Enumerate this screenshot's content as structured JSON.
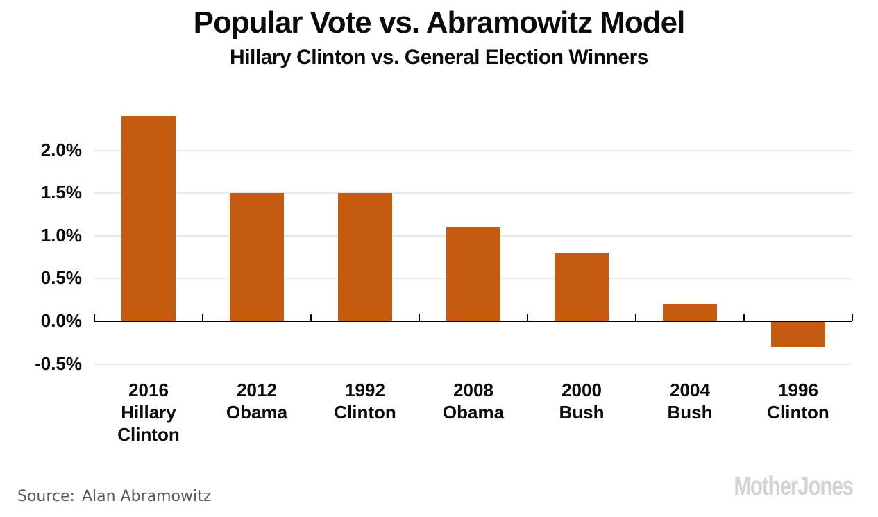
{
  "header": {
    "title": "Popular Vote vs. Abramowitz Model",
    "subtitle": "Hillary Clinton vs. General Election Winners"
  },
  "footer": {
    "source_label": "Source:",
    "source_value": "Alan Abramowitz",
    "logo_text": "MotherJones"
  },
  "colors": {
    "bar": "#c55a11",
    "axis": "#000000",
    "gridline": "#e9e9e9",
    "text": "#0b0b0b",
    "source_text": "#5b5b5b",
    "logo": "#d3d3d3"
  },
  "chart_data": {
    "type": "bar",
    "title": "Popular Vote vs. Abramowitz Model",
    "subtitle": "Hillary Clinton vs. General Election Winners",
    "categories": [
      [
        "2016",
        "Hillary",
        "Clinton"
      ],
      [
        "2012",
        "Obama"
      ],
      [
        "1992",
        "Clinton"
      ],
      [
        "2008",
        "Obama"
      ],
      [
        "2000",
        "Bush"
      ],
      [
        "2004",
        "Bush"
      ],
      [
        "1996",
        "Clinton"
      ]
    ],
    "values": [
      2.4,
      1.5,
      1.5,
      1.1,
      0.8,
      0.2,
      -0.3
    ],
    "unit": "%",
    "xlabel": "",
    "ylabel": "",
    "y_axis": {
      "ticks": [
        2.0,
        1.5,
        1.0,
        0.5,
        0.0,
        -0.5
      ],
      "tick_labels": [
        "2.0%",
        "1.5%",
        "1.0%",
        "0.5%",
        "0.0%",
        "-0.5%"
      ],
      "ylim": [
        -0.62,
        2.46
      ],
      "gridlines": true,
      "zero_line": true
    },
    "legend": null,
    "bar_color": "#c55a11",
    "source": "Alan Abramowitz"
  }
}
